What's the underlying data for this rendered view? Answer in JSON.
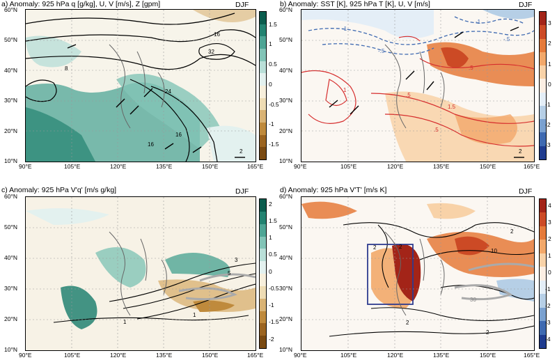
{
  "season": "DJF",
  "lat_ticks": [
    "60°N",
    "50°N",
    "40°N",
    "30°N",
    "20°N",
    "10°N"
  ],
  "lon_ticks": [
    "90°E",
    "105°E",
    "120°E",
    "135°E",
    "150°E",
    "165°E"
  ],
  "palettes": {
    "brown_green": [
      "#7a4a12",
      "#9b6420",
      "#bf8a3c",
      "#d9b375",
      "#eedcb4",
      "#f7efdc",
      "#e3f1ef",
      "#b9dfd8",
      "#82c4b7",
      "#4ea595",
      "#238371",
      "#0b5d4e"
    ],
    "blue_red": [
      "#1f3c8f",
      "#3f6ab1",
      "#7aa1d0",
      "#b6cfe6",
      "#e4eef7",
      "#fbeee3",
      "#f8d2a8",
      "#f2a86a",
      "#e57a3a",
      "#cc4a25",
      "#a32418"
    ]
  },
  "charts": [
    {
      "id": "a",
      "title": "a) Anomaly: 925 hPa q [g/kg], U, V [m/s], Z [gpm]",
      "colorbar_ticks": [
        "1.5",
        "1",
        "0.5",
        "0",
        "-0.5",
        "-1",
        "-1.5"
      ],
      "palette": "brown_green",
      "contour_labels": [
        "32",
        "16",
        "8",
        "24",
        "16",
        "16",
        "2"
      ],
      "vector_ref": "2"
    },
    {
      "id": "b",
      "title": "b) Anomaly: SST [K], 925 hPa T [K], U, V [m/s]",
      "colorbar_ticks": [
        "3",
        "2",
        "1",
        "0",
        "-1",
        "-2",
        "-3"
      ],
      "palette": "blue_red",
      "contour_labels": [
        "-1",
        "-1",
        "-.5",
        "-.5",
        "1",
        "1.5",
        ".5",
        ".5",
        ".5"
      ],
      "vector_ref": "2"
    },
    {
      "id": "c",
      "title": "c) Anomaly: 925 hPa V'q' [m/s g/kg]",
      "colorbar_ticks": [
        "2",
        "1.5",
        "1",
        "0.5",
        "0",
        "-0.5",
        "-1",
        "-1.5",
        "-2"
      ],
      "palette": "brown_green",
      "contour_labels": [
        "3",
        "5",
        "1",
        "1"
      ],
      "vector_ref": ""
    },
    {
      "id": "d",
      "title": "d) Anomaly: 925 hPa V'T' [m/s K]",
      "colorbar_ticks": [
        "4",
        "3",
        "2",
        "1",
        "0",
        "-1",
        "-2",
        "-3",
        "-4"
      ],
      "palette": "blue_red",
      "contour_labels": [
        "2",
        "2",
        "10",
        "2",
        "2",
        "30",
        "2"
      ],
      "vector_ref": ""
    }
  ]
}
